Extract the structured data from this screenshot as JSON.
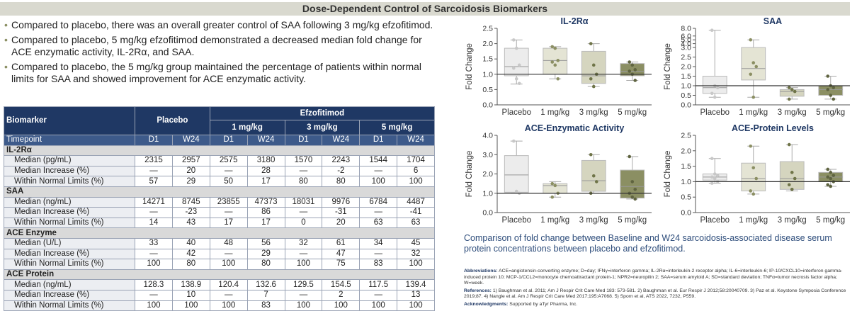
{
  "header": {
    "title": "Dose-Dependent Control of Sarcoidosis Biomarkers"
  },
  "bullets": [
    "Compared to placebo, there was an overall greater control of SAA following 3 mg/kg efzofitimod.",
    "Compared to placebo, 5 mg/kg efzofitimod demonstrated a decreased median fold change for ACE enzymatic activity, IL-2Rα, and SAA.",
    "Compared to placebo, the 5 mg/kg group maintained the percentage of patients within normal limits for SAA and showed improvement for ACE enzymatic activity."
  ],
  "table": {
    "biomarker_header": "Biomarker",
    "placebo_header": "Placebo",
    "drug_header": "Efzofitimod",
    "doses": [
      "1 mg/kg",
      "3 mg/kg",
      "5 mg/kg"
    ],
    "timepoint_label": "Timepoint",
    "timepoints": [
      "D1",
      "W24",
      "D1",
      "W24",
      "D1",
      "W24",
      "D1",
      "W24"
    ],
    "sections": [
      {
        "name": "IL-2Rα",
        "rows": [
          {
            "label": "Median (pg/mL)",
            "cells": [
              "2315",
              "2957",
              "2575",
              "3180",
              "1570",
              "2243",
              "1544",
              "1704"
            ]
          },
          {
            "label": "Median Increase (%)",
            "cells": [
              "—",
              "20",
              "—",
              "28",
              "—",
              "-2",
              "—",
              "6"
            ]
          },
          {
            "label": "Within Normal Limits (%)",
            "cells": [
              "57",
              "29",
              "50",
              "17",
              "80",
              "80",
              "100",
              "100"
            ]
          }
        ]
      },
      {
        "name": "SAA",
        "rows": [
          {
            "label": "Median (ng/mL)",
            "cells": [
              "14271",
              "8745",
              "23855",
              "47373",
              "18031",
              "9976",
              "6784",
              "4487"
            ]
          },
          {
            "label": "Median Increase (%)",
            "cells": [
              "—",
              "-23",
              "—",
              "86",
              "—",
              "-31",
              "—",
              "-41"
            ]
          },
          {
            "label": "Within Normal Limits (%)",
            "cells": [
              "14",
              "43",
              "17",
              "17",
              "0",
              "20",
              "63",
              "63"
            ]
          }
        ]
      },
      {
        "name": "ACE Enzyme",
        "rows": [
          {
            "label": "Median (U/L)",
            "cells": [
              "33",
              "40",
              "48",
              "56",
              "32",
              "61",
              "34",
              "45"
            ]
          },
          {
            "label": "Median Increase (%)",
            "cells": [
              "—",
              "42",
              "—",
              "29",
              "—",
              "47",
              "—",
              "32"
            ]
          },
          {
            "label": "Within Normal Limits (%)",
            "cells": [
              "100",
              "80",
              "100",
              "80",
              "100",
              "75",
              "83",
              "100"
            ]
          }
        ]
      },
      {
        "name": "ACE Protein",
        "rows": [
          {
            "label": "Median (ng/mL)",
            "cells": [
              "128.3",
              "138.9",
              "120.4",
              "132.6",
              "129.5",
              "154.5",
              "117.5",
              "139.4"
            ]
          },
          {
            "label": "Median Increase (%)",
            "cells": [
              "—",
              "10",
              "—",
              "7",
              "—",
              "2",
              "—",
              "13"
            ]
          },
          {
            "label": "Within Normal Limits (%)",
            "cells": [
              "100",
              "100",
              "100",
              "83",
              "100",
              "100",
              "100",
              "100"
            ]
          }
        ]
      }
    ]
  },
  "chart_data": [
    {
      "type": "box",
      "title": "IL-2Rα",
      "y_label": "Fold Change",
      "categories": [
        "Placebo",
        "1 mg/kg",
        "3 mg/kg",
        "5 mg/kg"
      ],
      "colors": [
        "#ececec",
        "#e4e4d4",
        "#d5d5bf",
        "#8b8f63"
      ],
      "point_colors": [
        "#c8c8c8",
        "#8b8f63",
        "#6f7448",
        "#5f6440"
      ],
      "reference_line": 1,
      "ylim": [
        0,
        2.5
      ],
      "yticks": [
        {
          "value": 0,
          "label": "0.0"
        },
        {
          "value": 0.5,
          "label": "0.5"
        },
        {
          "value": 1,
          "label": "1.0"
        },
        {
          "value": 1.5,
          "label": "1.5"
        },
        {
          "value": 2,
          "label": "2.0"
        },
        {
          "value": 2.5,
          "label": "2.5"
        }
      ],
      "boxes": [
        {
          "min": 0.68,
          "q1": 0.95,
          "median": 1.25,
          "q3": 1.85,
          "max": 2.12,
          "points": [
            2.12,
            1.85,
            1.3,
            1.2,
            0.85,
            0.7
          ]
        },
        {
          "min": 0.85,
          "q1": 1.0,
          "median": 1.45,
          "q3": 1.85,
          "max": 1.9,
          "points": [
            1.9,
            1.85,
            1.45,
            1.4,
            1.3,
            0.85
          ]
        },
        {
          "min": 0.6,
          "q1": 0.7,
          "median": 0.95,
          "q3": 1.75,
          "max": 2.0,
          "points": [
            2.0,
            1.3,
            1.0,
            0.85,
            0.6
          ]
        },
        {
          "min": 0.8,
          "q1": 0.95,
          "median": 1.1,
          "q3": 1.35,
          "max": 1.4,
          "points": [
            1.4,
            1.3,
            1.15,
            1.1,
            1.0,
            0.8
          ]
        }
      ]
    },
    {
      "type": "box",
      "title": "SAA",
      "y_label": "Fold Change",
      "categories": [
        "Placebo",
        "1 mg/kg",
        "3 mg/kg",
        "5 mg/kg"
      ],
      "colors": [
        "#ececec",
        "#e4e4d4",
        "#d5d5bf",
        "#8b8f63"
      ],
      "point_colors": [
        "#c8c8c8",
        "#8b8f63",
        "#6f7448",
        "#5f6440"
      ],
      "reference_line": 1,
      "y_scale": "broken",
      "y_break": 3,
      "ylim": [
        0,
        8
      ],
      "yticks": [
        {
          "value": 0,
          "label": "0.0"
        },
        {
          "value": 0.5,
          "label": "0.5"
        },
        {
          "value": 1,
          "label": "1.0"
        },
        {
          "value": 1.5,
          "label": "1.5"
        },
        {
          "value": 2,
          "label": "2.0"
        },
        {
          "value": 2.5,
          "label": "2.5"
        },
        {
          "value": 3,
          "label": "3.0"
        },
        {
          "value": 4,
          "label": "4.0"
        },
        {
          "value": 5,
          "label": "5.0"
        },
        {
          "value": 6,
          "label": "6.0"
        },
        {
          "value": 8,
          "label": "8.0"
        }
      ],
      "boxes": [
        {
          "min": 0.4,
          "q1": 0.6,
          "median": 0.9,
          "q3": 1.5,
          "max": 7.5,
          "points": [
            7.5,
            1.0,
            0.9,
            0.6,
            0.4
          ]
        },
        {
          "min": 0.4,
          "q1": 1.3,
          "median": 1.9,
          "q3": 3.0,
          "max": 5.0,
          "points": [
            5.0,
            2.2,
            2.0,
            1.6,
            0.4
          ]
        },
        {
          "min": 0.3,
          "q1": 0.45,
          "median": 0.7,
          "q3": 0.8,
          "max": 0.9,
          "points": [
            0.9,
            0.8,
            0.7,
            0.3
          ]
        },
        {
          "min": 0.3,
          "q1": 0.5,
          "median": 0.8,
          "q3": 1.0,
          "max": 1.5,
          "points": [
            1.5,
            1.0,
            0.9,
            0.8,
            0.5,
            0.3
          ]
        }
      ]
    },
    {
      "type": "box",
      "title": "ACE-Enzymatic Activity",
      "y_label": "Fold Change",
      "categories": [
        "Placebo",
        "1 mg/kg",
        "3 mg/kg",
        "5 mg/kg"
      ],
      "colors": [
        "#ececec",
        "#e4e4d4",
        "#d5d5bf",
        "#8b8f63"
      ],
      "point_colors": [
        "#c8c8c8",
        "#8b8f63",
        "#6f7448",
        "#5f6440"
      ],
      "reference_line": 1,
      "ylim": [
        0,
        4
      ],
      "yticks": [
        {
          "value": 0,
          "label": "0.0"
        },
        {
          "value": 1,
          "label": "1.0"
        },
        {
          "value": 2,
          "label": "2.0"
        },
        {
          "value": 3,
          "label": "3.0"
        },
        {
          "value": 4,
          "label": "4.0"
        }
      ],
      "boxes": [
        {
          "min": 1.0,
          "q1": 1.05,
          "median": 1.95,
          "q3": 2.95,
          "max": 3.7,
          "points": [
            3.7,
            1.1,
            1.0
          ]
        },
        {
          "min": 0.8,
          "q1": 1.0,
          "median": 1.4,
          "q3": 1.5,
          "max": 1.6,
          "points": [
            1.5,
            1.4,
            1.0,
            0.8
          ]
        },
        {
          "min": 1.0,
          "q1": 1.1,
          "median": 1.65,
          "q3": 2.7,
          "max": 3.0,
          "points": [
            3.0,
            1.9,
            1.6,
            1.0
          ]
        },
        {
          "min": 0.7,
          "q1": 0.75,
          "median": 1.35,
          "q3": 2.2,
          "max": 2.9,
          "points": [
            2.9,
            1.6,
            1.2,
            1.0,
            0.8,
            0.7
          ]
        }
      ]
    },
    {
      "type": "box",
      "title": "ACE-Protein Levels",
      "y_label": "Fold Change",
      "categories": [
        "Placebo",
        "1 mg/kg",
        "3 mg/kg",
        "5 mg/kg"
      ],
      "colors": [
        "#ececec",
        "#e4e4d4",
        "#d5d5bf",
        "#8b8f63"
      ],
      "point_colors": [
        "#c8c8c8",
        "#8b8f63",
        "#6f7448",
        "#5f6440"
      ],
      "reference_line": 1,
      "ylim": [
        0,
        2.5
      ],
      "yticks": [
        {
          "value": 0,
          "label": "0.0"
        },
        {
          "value": 0.5,
          "label": "0.5"
        },
        {
          "value": 1,
          "label": "1.0"
        },
        {
          "value": 1.5,
          "label": "1.5"
        },
        {
          "value": 2,
          "label": "2.0"
        },
        {
          "value": 2.5,
          "label": "2.5"
        }
      ],
      "boxes": [
        {
          "min": 0.95,
          "q1": 1.05,
          "median": 1.15,
          "q3": 1.25,
          "max": 1.75,
          "points": [
            1.75,
            1.25,
            1.2,
            1.15,
            1.1,
            1.0,
            0.95
          ]
        },
        {
          "min": 0.6,
          "q1": 0.7,
          "median": 1.1,
          "q3": 1.6,
          "max": 2.15,
          "points": [
            2.15,
            1.45,
            1.1,
            0.7,
            0.6
          ]
        },
        {
          "min": 0.7,
          "q1": 0.75,
          "median": 1.1,
          "q3": 1.65,
          "max": 2.2,
          "points": [
            2.2,
            1.3,
            1.1,
            0.9,
            0.75
          ]
        },
        {
          "min": 0.85,
          "q1": 1.0,
          "median": 1.15,
          "q3": 1.3,
          "max": 1.4,
          "points": [
            1.4,
            1.3,
            1.2,
            1.15,
            1.1,
            1.0,
            0.9,
            0.85
          ]
        }
      ]
    }
  ],
  "caption": "Comparison of fold change between Baseline and W24 sarcoidosis-associated disease serum protein concentrations between placebo and efzofitimod.",
  "footnotes": {
    "abbreviations_label": "Abbreviations:",
    "abbreviations": "ACE=angiotensin-converting enzyme; D=day; IFNγ=interferon gamma; IL-2Rα=interleukin-2 receptor alpha; IL-6=interleukin-6; IP-10/CXCL10=interferon gamma-induced protein 10; MCP-1/CCL2=monocyte chemoattractant protein-1; NPR2=neuropilin 2; SAA=serum amyloid A; SD=standard deviation; TNFα=tumor necrosis factor alpha; W=week.",
    "references_label": "References:",
    "references": "1) Baughman et al. 2011; Am J Respir Crit Care Med 183: 573-581. 2) Baughman et al. Eur Respir J 2012;58:20040709. 3) Paz et al. Keystone Symposia Conference 2019;87. 4) Nangle et al. Am J Respir Crit Care Med 2017;195:A7068. 5) Sporn et al, ATS 2022, 7232, P559.",
    "acknowledgments_label": "Acknowledgments:",
    "acknowledgments": "Supported by aTyr Pharma, Inc."
  }
}
